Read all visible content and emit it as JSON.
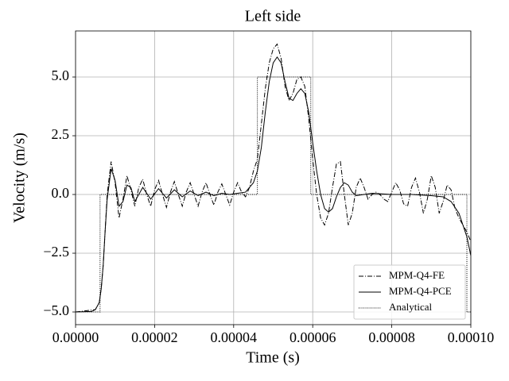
{
  "chart_data": {
    "type": "line",
    "title": "Left side",
    "x_label": "Time (s)",
    "y_label": "Velocity (m/s)",
    "xlim": [
      0,
      0.0001
    ],
    "ylim": [
      -5.54,
      6.96
    ],
    "xticks": [
      {
        "value": 0,
        "label": "0.00000"
      },
      {
        "value": 2e-05,
        "label": "0.00002"
      },
      {
        "value": 4e-05,
        "label": "0.00004"
      },
      {
        "value": 6e-05,
        "label": "0.00006"
      },
      {
        "value": 8e-05,
        "label": "0.00008"
      },
      {
        "value": 0.0001,
        "label": "0.00010"
      }
    ],
    "yticks": [
      {
        "value": -5,
        "label": "−5.0"
      },
      {
        "value": -2.5,
        "label": "−2.5"
      },
      {
        "value": 0,
        "label": "0.0"
      },
      {
        "value": 2.5,
        "label": "2.5"
      },
      {
        "value": 5,
        "label": "5.0"
      }
    ],
    "grid": true,
    "legend": "lower right",
    "series": [
      {
        "name": "MPM-Q4-FE",
        "color": "#000000",
        "dash": "dashdot",
        "x": [
          0,
          5e-06,
          6e-06,
          6.5e-06,
          7e-06,
          7.5e-06,
          8e-06,
          9e-06,
          1e-05,
          1.1e-05,
          1.2e-05,
          1.3e-05,
          1.4e-05,
          1.5e-05,
          1.6e-05,
          1.7e-05,
          1.8e-05,
          1.9e-05,
          2e-05,
          2.1e-05,
          2.2e-05,
          2.3e-05,
          2.4e-05,
          2.5e-05,
          2.6e-05,
          2.7e-05,
          2.8e-05,
          2.9e-05,
          3e-05,
          3.1e-05,
          3.2e-05,
          3.3e-05,
          3.4e-05,
          3.5e-05,
          3.6e-05,
          3.7e-05,
          3.8e-05,
          3.9e-05,
          4e-05,
          4.1e-05,
          4.2e-05,
          4.3e-05,
          4.4e-05,
          4.5e-05,
          4.6e-05,
          4.7e-05,
          4.8e-05,
          4.9e-05,
          5e-05,
          5.1e-05,
          5.2e-05,
          5.3e-05,
          5.4e-05,
          5.5e-05,
          5.6e-05,
          5.7e-05,
          5.8e-05,
          5.9e-05,
          6e-05,
          6.1e-05,
          6.2e-05,
          6.3e-05,
          6.4e-05,
          6.5e-05,
          6.6e-05,
          6.7e-05,
          6.8e-05,
          6.9e-05,
          7e-05,
          7.1e-05,
          7.2e-05,
          7.3e-05,
          7.4e-05,
          7.5e-05,
          7.6e-05,
          7.7e-05,
          7.8e-05,
          7.9e-05,
          8e-05,
          8.1e-05,
          8.2e-05,
          8.3e-05,
          8.4e-05,
          8.5e-05,
          8.6e-05,
          8.7e-05,
          8.8e-05,
          8.9e-05,
          9e-05,
          9.1e-05,
          9.2e-05,
          9.3e-05,
          9.4e-05,
          9.5e-05,
          9.6e-05,
          9.7e-05,
          9.8e-05,
          9.9e-05,
          0.0001
        ],
        "values": [
          -5,
          -4.9,
          -4.6,
          -4,
          -3,
          -1.5,
          0,
          1.4,
          0.5,
          -1.0,
          -0.2,
          0.8,
          0.2,
          -0.5,
          0.3,
          0.65,
          0.0,
          -0.5,
          0.2,
          0.6,
          0,
          -0.55,
          0.1,
          0.55,
          0,
          -0.5,
          0.1,
          0.5,
          0,
          -0.5,
          0.1,
          0.5,
          0,
          -0.45,
          0.1,
          0.45,
          0,
          -0.45,
          0.1,
          0.5,
          0.1,
          -0.1,
          0.3,
          1.0,
          1.5,
          3.0,
          4.5,
          5.6,
          6.2,
          6.4,
          5.8,
          4.6,
          4.0,
          4.3,
          4.9,
          5.0,
          4.6,
          3.2,
          1.5,
          0.0,
          -1.0,
          -1.3,
          -0.8,
          0.3,
          1.3,
          1.4,
          0.0,
          -1.3,
          -0.8,
          0.3,
          0.7,
          0.3,
          -0.2,
          0.0,
          0.1,
          0.0,
          -0.2,
          -0.3,
          0.1,
          0.5,
          0.2,
          -0.4,
          -0.5,
          0.3,
          0.7,
          0.1,
          -0.8,
          -0.2,
          0.8,
          0.3,
          -0.8,
          -0.3,
          0.4,
          0.2,
          -0.6,
          -1.0,
          -1.3,
          -1.6,
          -2.0
        ]
      },
      {
        "name": "MPM-Q4-PCE",
        "color": "#000000",
        "dash": "solid",
        "x": [
          0,
          4e-06,
          5e-06,
          6e-06,
          6.5e-06,
          7e-06,
          7.5e-06,
          8e-06,
          9e-06,
          1e-05,
          1.1e-05,
          1.2e-05,
          1.3e-05,
          1.4e-05,
          1.5e-05,
          1.7e-05,
          1.9e-05,
          2.1e-05,
          2.3e-05,
          2.5e-05,
          2.7e-05,
          2.9e-05,
          3.1e-05,
          3.3e-05,
          3.5e-05,
          3.7e-05,
          3.9e-05,
          4.1e-05,
          4.3e-05,
          4.5e-05,
          4.6e-05,
          4.7e-05,
          4.8e-05,
          4.9e-05,
          5e-05,
          5.1e-05,
          5.2e-05,
          5.3e-05,
          5.4e-05,
          5.5e-05,
          5.6e-05,
          5.7e-05,
          5.8e-05,
          5.9e-05,
          6e-05,
          6.1e-05,
          6.2e-05,
          6.3e-05,
          6.4e-05,
          6.5e-05,
          6.6e-05,
          6.7e-05,
          6.8e-05,
          6.9e-05,
          7e-05,
          7.1e-05,
          7.3e-05,
          7.5e-05,
          8e-05,
          8.5e-05,
          9e-05,
          9.3e-05,
          9.5e-05,
          9.7e-05,
          9.9e-05,
          0.0001
        ],
        "values": [
          -5,
          -4.98,
          -4.9,
          -4.6,
          -4.0,
          -3,
          -1.5,
          -0.2,
          1.1,
          0.6,
          -0.5,
          -0.3,
          0.4,
          0.3,
          -0.3,
          0.3,
          -0.2,
          0.25,
          -0.15,
          0.2,
          -0.1,
          0.15,
          -0.05,
          0.1,
          -0.05,
          0.05,
          0.0,
          0.05,
          0.1,
          0.5,
          1.0,
          2.0,
          3.5,
          4.8,
          5.6,
          5.85,
          5.6,
          4.8,
          4.1,
          4.0,
          4.3,
          4.5,
          4.3,
          3.5,
          2.2,
          1.0,
          0.0,
          -0.6,
          -0.75,
          -0.6,
          -0.1,
          0.3,
          0.5,
          0.4,
          0.1,
          -0.05,
          0.0,
          0.05,
          0.0,
          0.0,
          -0.05,
          -0.1,
          -0.3,
          -0.8,
          -1.8,
          -2.6
        ]
      },
      {
        "name": "Analytical",
        "color": "#000000",
        "dash": "dotted",
        "x": [
          0,
          6.2e-06,
          6.2e-06,
          4.6e-05,
          4.6e-05,
          5.95e-05,
          5.95e-05,
          9.9e-05,
          9.9e-05,
          0.0001
        ],
        "values": [
          -5,
          -5,
          0,
          0,
          5,
          5,
          0,
          0,
          -5,
          -5
        ]
      }
    ]
  }
}
